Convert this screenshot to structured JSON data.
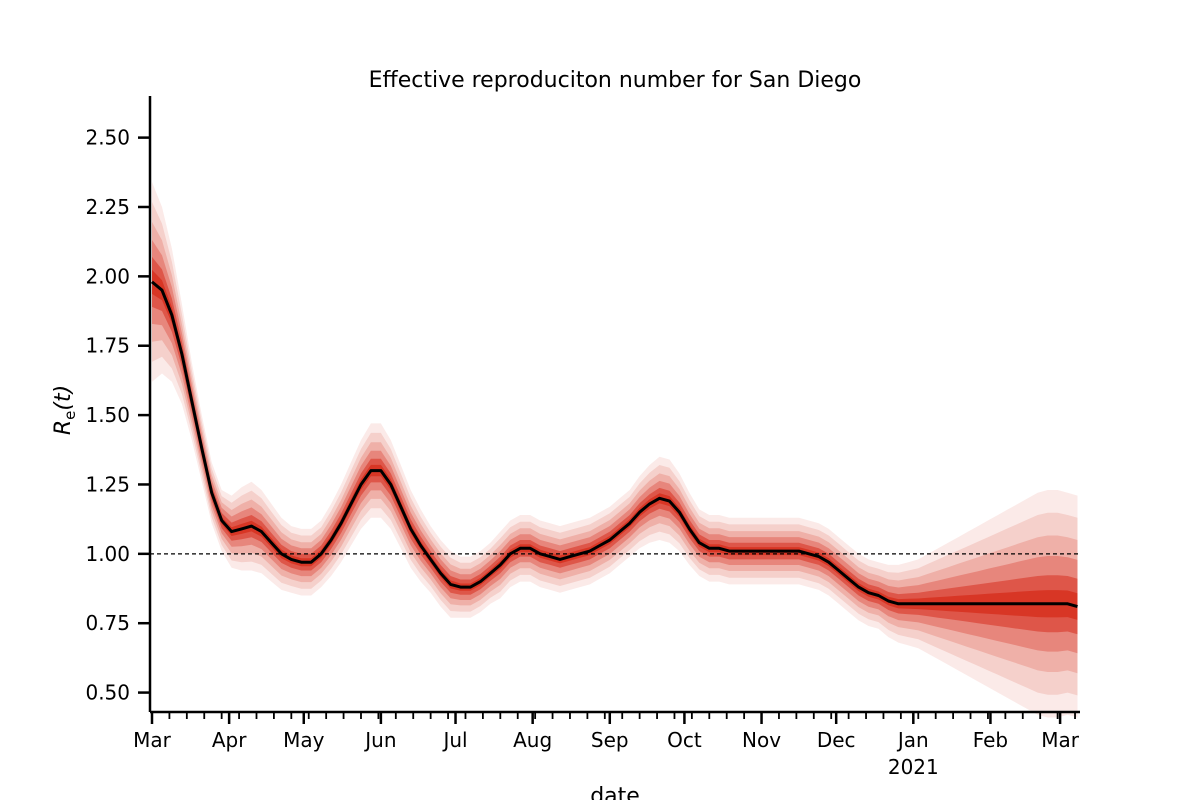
{
  "chart_data": {
    "type": "line",
    "title": "Effective reproduciton number for San Diego",
    "xlabel": "date",
    "ylabel_main": "R",
    "ylabel_sub": "e",
    "ylabel_suffix": "(t)",
    "ylim": [
      0.43,
      2.65
    ],
    "xlim": [
      "2020-03-01",
      "2021-03-09"
    ],
    "yticks": [
      0.5,
      0.75,
      1.0,
      1.25,
      1.5,
      1.75,
      2.0,
      2.25,
      2.5
    ],
    "ytick_labels": [
      "0.50",
      "0.75",
      "1.00",
      "1.25",
      "1.50",
      "1.75",
      "2.00",
      "2.25",
      "2.50"
    ],
    "xticks": [
      {
        "date": "2020-03-01",
        "label": "Mar"
      },
      {
        "date": "2020-04-01",
        "label": "Apr"
      },
      {
        "date": "2020-05-01",
        "label": "May"
      },
      {
        "date": "2020-06-01",
        "label": "Jun"
      },
      {
        "date": "2020-07-01",
        "label": "Jul"
      },
      {
        "date": "2020-08-01",
        "label": "Aug"
      },
      {
        "date": "2020-09-01",
        "label": "Sep"
      },
      {
        "date": "2020-10-01",
        "label": "Oct"
      },
      {
        "date": "2020-11-01",
        "label": "Nov"
      },
      {
        "date": "2020-12-01",
        "label": "Dec"
      },
      {
        "date": "2021-01-01",
        "label": "Jan",
        "sublabel": "2021"
      },
      {
        "date": "2021-02-01",
        "label": "Feb"
      },
      {
        "date": "2021-03-01",
        "label": "Mar"
      }
    ],
    "reference_line": {
      "y": 1.0,
      "style": "dashed"
    },
    "series": [
      {
        "x": [
          "2020-03-01",
          "2020-03-05",
          "2020-03-09",
          "2020-03-13",
          "2020-03-17",
          "2020-03-21",
          "2020-03-25",
          "2020-03-29",
          "2020-04-02",
          "2020-04-06",
          "2020-04-10",
          "2020-04-14",
          "2020-04-18",
          "2020-04-22",
          "2020-04-26",
          "2020-04-30",
          "2020-05-04",
          "2020-05-08",
          "2020-05-12",
          "2020-05-16",
          "2020-05-20",
          "2020-05-24",
          "2020-05-28",
          "2020-06-01",
          "2020-06-05",
          "2020-06-09",
          "2020-06-13",
          "2020-06-17",
          "2020-06-21",
          "2020-06-25",
          "2020-06-29",
          "2020-07-03",
          "2020-07-07",
          "2020-07-11",
          "2020-07-15",
          "2020-07-19",
          "2020-07-23",
          "2020-07-27",
          "2020-07-31",
          "2020-08-04",
          "2020-08-08",
          "2020-08-12",
          "2020-08-16",
          "2020-08-20",
          "2020-08-24",
          "2020-08-28",
          "2020-09-01",
          "2020-09-05",
          "2020-09-09",
          "2020-09-13",
          "2020-09-17",
          "2020-09-21",
          "2020-09-25",
          "2020-09-29",
          "2020-10-03",
          "2020-10-07",
          "2020-10-11",
          "2020-10-15",
          "2020-10-19",
          "2020-10-23",
          "2020-10-27",
          "2020-10-31",
          "2020-11-04",
          "2020-11-08",
          "2020-11-12",
          "2020-11-16",
          "2020-11-20",
          "2020-11-24",
          "2020-11-28",
          "2020-12-02",
          "2020-12-06",
          "2020-12-10",
          "2020-12-14",
          "2020-12-18",
          "2020-12-22",
          "2020-12-26",
          "2020-12-30",
          "2021-01-03",
          "2021-01-07",
          "2021-01-11",
          "2021-01-15",
          "2021-01-19",
          "2021-01-23",
          "2021-01-27",
          "2021-01-31",
          "2021-02-04",
          "2021-02-08",
          "2021-02-12",
          "2021-02-16",
          "2021-02-20",
          "2021-02-24",
          "2021-02-28",
          "2021-03-04",
          "2021-03-08"
        ],
        "median": [
          1.98,
          1.95,
          1.86,
          1.72,
          1.55,
          1.38,
          1.22,
          1.12,
          1.08,
          1.09,
          1.1,
          1.08,
          1.04,
          1.0,
          0.98,
          0.97,
          0.97,
          1.0,
          1.05,
          1.11,
          1.18,
          1.25,
          1.3,
          1.3,
          1.25,
          1.17,
          1.09,
          1.03,
          0.98,
          0.93,
          0.89,
          0.88,
          0.88,
          0.9,
          0.93,
          0.96,
          1.0,
          1.02,
          1.02,
          1.0,
          0.99,
          0.98,
          0.99,
          1.0,
          1.01,
          1.03,
          1.05,
          1.08,
          1.11,
          1.15,
          1.18,
          1.2,
          1.19,
          1.15,
          1.09,
          1.04,
          1.02,
          1.02,
          1.01,
          1.01,
          1.01,
          1.01,
          1.01,
          1.01,
          1.01,
          1.01,
          1.0,
          0.99,
          0.97,
          0.94,
          0.91,
          0.88,
          0.86,
          0.85,
          0.83,
          0.82,
          0.82,
          0.82,
          0.82,
          0.82,
          0.82,
          0.82,
          0.82,
          0.82,
          0.82,
          0.82,
          0.82,
          0.82,
          0.82,
          0.82,
          0.82,
          0.82,
          0.82,
          0.81
        ],
        "band_half_width": [
          0.36,
          0.3,
          0.24,
          0.18,
          0.14,
          0.12,
          0.11,
          0.11,
          0.13,
          0.15,
          0.16,
          0.15,
          0.14,
          0.13,
          0.12,
          0.12,
          0.12,
          0.12,
          0.13,
          0.14,
          0.15,
          0.16,
          0.17,
          0.17,
          0.16,
          0.15,
          0.14,
          0.13,
          0.12,
          0.12,
          0.12,
          0.11,
          0.11,
          0.11,
          0.11,
          0.12,
          0.12,
          0.12,
          0.12,
          0.12,
          0.12,
          0.12,
          0.12,
          0.12,
          0.12,
          0.12,
          0.12,
          0.12,
          0.12,
          0.13,
          0.14,
          0.15,
          0.15,
          0.14,
          0.13,
          0.12,
          0.12,
          0.12,
          0.12,
          0.12,
          0.12,
          0.12,
          0.12,
          0.12,
          0.12,
          0.12,
          0.12,
          0.12,
          0.12,
          0.12,
          0.12,
          0.12,
          0.12,
          0.12,
          0.13,
          0.14,
          0.15,
          0.16,
          0.18,
          0.2,
          0.22,
          0.24,
          0.26,
          0.28,
          0.3,
          0.32,
          0.34,
          0.36,
          0.38,
          0.4,
          0.41,
          0.41,
          0.4,
          0.4
        ]
      }
    ],
    "colors": {
      "median": "#000000",
      "band": "#d7301f",
      "reference": "#000000",
      "axis": "#000000"
    }
  }
}
